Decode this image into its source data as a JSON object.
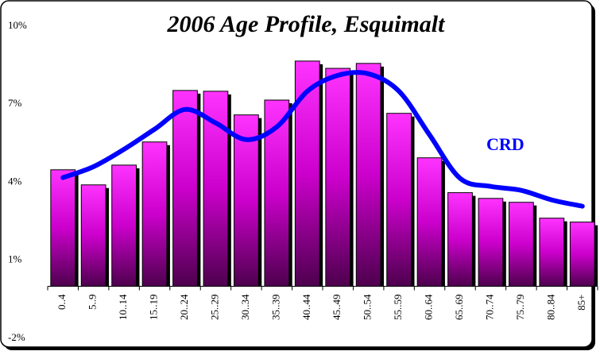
{
  "chart_data": {
    "type": "bar",
    "title": "2006 Age Profile, Esquimalt",
    "categories": [
      "0..4",
      "5..9",
      "10..14",
      "15..19",
      "20..24",
      "25..29",
      "30..34",
      "35..39",
      "40..44",
      "45..49",
      "50..54",
      "55..59",
      "60..64",
      "65..69",
      "70..74",
      "75..79",
      "80..84",
      "85+"
    ],
    "series": [
      {
        "color": "#ff00ff",
        "values": [
          4.48,
          3.9,
          4.66,
          5.55,
          7.53,
          7.5,
          6.59,
          7.16,
          8.66,
          8.38,
          8.57,
          6.65,
          4.94,
          3.6,
          3.38,
          3.23,
          2.62,
          2.47
        ]
      },
      {
        "name": "CRD",
        "type": "line",
        "color": "#0000ff",
        "values": [
          4.18,
          4.6,
          5.27,
          6.04,
          6.8,
          6.28,
          5.64,
          6.13,
          7.5,
          8.11,
          8.17,
          7.5,
          5.82,
          4.15,
          3.84,
          3.69,
          3.32,
          3.08
        ]
      }
    ],
    "ylim": [
      -2,
      10
    ],
    "yticks": [
      {
        "value": 10,
        "label": "10%"
      },
      {
        "value": 7,
        "label": "7%"
      },
      {
        "value": 4,
        "label": "4%"
      },
      {
        "value": 1,
        "label": "1%"
      },
      {
        "value": -2,
        "label": "-2%"
      }
    ]
  }
}
